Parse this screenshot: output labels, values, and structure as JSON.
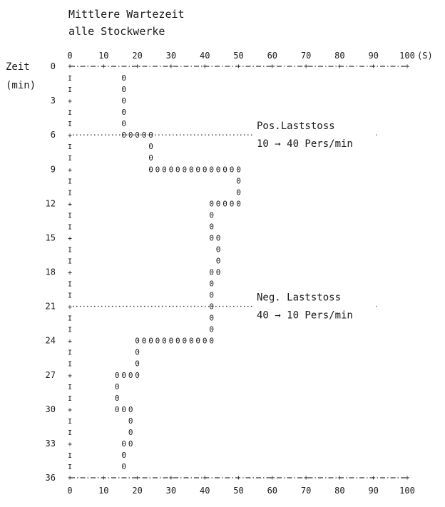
{
  "chart_data": {
    "type": "scatter",
    "title_lines": [
      "Mittlere Wartezeit",
      "alle Stockwerke"
    ],
    "ylabel": "Zeit",
    "ylabel_unit": "(min)",
    "x_unit": "(S)",
    "x_ticks": [
      "0",
      "10",
      "20",
      "30",
      "40",
      "50",
      "60",
      "70",
      "80",
      "90",
      "100"
    ],
    "y_ticks": [
      "0",
      "3",
      "6",
      "9",
      "12",
      "15",
      "18",
      "21",
      "24",
      "27",
      "30",
      "33",
      "36"
    ],
    "xlim": [
      0,
      100
    ],
    "ylim": [
      0,
      36
    ],
    "marker": "0",
    "y_axis_marks": "I",
    "rows": [
      {
        "t": 1,
        "from": 16,
        "to": 16
      },
      {
        "t": 2,
        "from": 16,
        "to": 16
      },
      {
        "t": 3,
        "from": 16,
        "to": 16
      },
      {
        "t": 4,
        "from": 16,
        "to": 16
      },
      {
        "t": 5,
        "from": 16,
        "to": 16
      },
      {
        "t": 6,
        "from": 16,
        "to": 24
      },
      {
        "t": 7,
        "from": 24,
        "to": 24
      },
      {
        "t": 8,
        "from": 24,
        "to": 24
      },
      {
        "t": 9,
        "from": 24,
        "to": 50
      },
      {
        "t": 10,
        "from": 50,
        "to": 50
      },
      {
        "t": 11,
        "from": 50,
        "to": 50
      },
      {
        "t": 12,
        "from": 42,
        "to": 50
      },
      {
        "t": 13,
        "from": 42,
        "to": 42
      },
      {
        "t": 14,
        "from": 42,
        "to": 42
      },
      {
        "t": 15,
        "from": 42,
        "to": 44
      },
      {
        "t": 16,
        "from": 44,
        "to": 44
      },
      {
        "t": 17,
        "from": 44,
        "to": 44
      },
      {
        "t": 18,
        "from": 42,
        "to": 44
      },
      {
        "t": 19,
        "from": 42,
        "to": 42
      },
      {
        "t": 20,
        "from": 42,
        "to": 42
      },
      {
        "t": 21,
        "from": 42,
        "to": 42
      },
      {
        "t": 22,
        "from": 42,
        "to": 42
      },
      {
        "t": 23,
        "from": 42,
        "to": 42
      },
      {
        "t": 24,
        "from": 20,
        "to": 42
      },
      {
        "t": 25,
        "from": 20,
        "to": 20
      },
      {
        "t": 26,
        "from": 20,
        "to": 20
      },
      {
        "t": 27,
        "from": 14,
        "to": 20
      },
      {
        "t": 28,
        "from": 14,
        "to": 14
      },
      {
        "t": 29,
        "from": 14,
        "to": 14
      },
      {
        "t": 30,
        "from": 14,
        "to": 18
      },
      {
        "t": 31,
        "from": 18,
        "to": 18
      },
      {
        "t": 32,
        "from": 18,
        "to": 18
      },
      {
        "t": 33,
        "from": 16,
        "to": 18
      },
      {
        "t": 34,
        "from": 16,
        "to": 16
      },
      {
        "t": 35,
        "from": 16,
        "to": 16
      }
    ],
    "annotations": [
      {
        "at_minute": 6,
        "lines": [
          "Pos.Laststoss",
          "10 → 40 Pers/min"
        ]
      },
      {
        "at_minute": 21,
        "lines": [
          "Neg. Laststoss",
          "40 → 10 Pers/min"
        ]
      }
    ]
  }
}
